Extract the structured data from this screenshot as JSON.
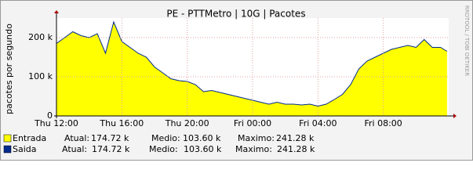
{
  "chart_data": {
    "type": "area",
    "title": "PE - PTTMetro | 10G | Pacotes",
    "y_label": "pacotes por segundo",
    "side_label": "RRDTOOL / TOBI OETIKER",
    "x": [
      0,
      0.5,
      1,
      1.5,
      2,
      2.5,
      3,
      3.5,
      4,
      4.5,
      5,
      5.5,
      6,
      6.5,
      7,
      7.5,
      8,
      8.5,
      9,
      9.5,
      10,
      10.5,
      11,
      11.5,
      12,
      12.5,
      13,
      13.5,
      14,
      14.5,
      15,
      15.5,
      16,
      16.5,
      17,
      17.5,
      18,
      18.5,
      19,
      19.5,
      20,
      20.5,
      21,
      21.5,
      22,
      22.5,
      23,
      23.5,
      23.9
    ],
    "series": [
      {
        "name": "Entrada",
        "color": "#ffff00",
        "style": "area",
        "values": [
          185,
          200,
          215,
          205,
          200,
          210,
          160,
          240,
          190,
          175,
          160,
          150,
          125,
          110,
          95,
          90,
          88,
          80,
          62,
          65,
          60,
          55,
          50,
          45,
          40,
          35,
          30,
          35,
          30,
          30,
          28,
          30,
          25,
          30,
          42,
          55,
          80,
          120,
          140,
          150,
          160,
          170,
          175,
          180,
          175,
          195,
          175,
          175,
          165
        ],
        "stats": [
          {
            "label": "Atual:",
            "value": "174.72 k"
          },
          {
            "label": "Medio:",
            "value": "103.60 k"
          },
          {
            "label": "Maximo:",
            "value": "241.28 k"
          }
        ]
      },
      {
        "name": "Saida",
        "color": "#002a8f",
        "style": "line",
        "values": [
          185,
          200,
          215,
          205,
          200,
          210,
          160,
          240,
          190,
          175,
          160,
          150,
          125,
          110,
          95,
          90,
          88,
          80,
          62,
          65,
          60,
          55,
          50,
          45,
          40,
          35,
          30,
          35,
          30,
          30,
          28,
          30,
          25,
          30,
          42,
          55,
          80,
          120,
          140,
          150,
          160,
          170,
          175,
          180,
          175,
          195,
          175,
          175,
          165
        ],
        "stats": [
          {
            "label": "Atual:",
            "value": "174.72 k"
          },
          {
            "label": "Medio:",
            "value": "103.60 k"
          },
          {
            "label": "Maximo:",
            "value": "241.28 k"
          }
        ]
      }
    ],
    "xlim": [
      0,
      24
    ],
    "xticks": [
      {
        "value": 0,
        "label": "Thu 12:00"
      },
      {
        "value": 4,
        "label": "Thu 16:00"
      },
      {
        "value": 8,
        "label": "Thu 20:00"
      },
      {
        "value": 12,
        "label": "Fri 00:00"
      },
      {
        "value": 16,
        "label": "Fri 04:00"
      },
      {
        "value": 20,
        "label": "Fri 08:00"
      }
    ],
    "ylim": [
      0,
      250
    ],
    "yticks": [
      0,
      {
        "value": 100,
        "label": "100 k"
      },
      {
        "value": 200,
        "label": "200 k"
      }
    ],
    "grid": true
  }
}
